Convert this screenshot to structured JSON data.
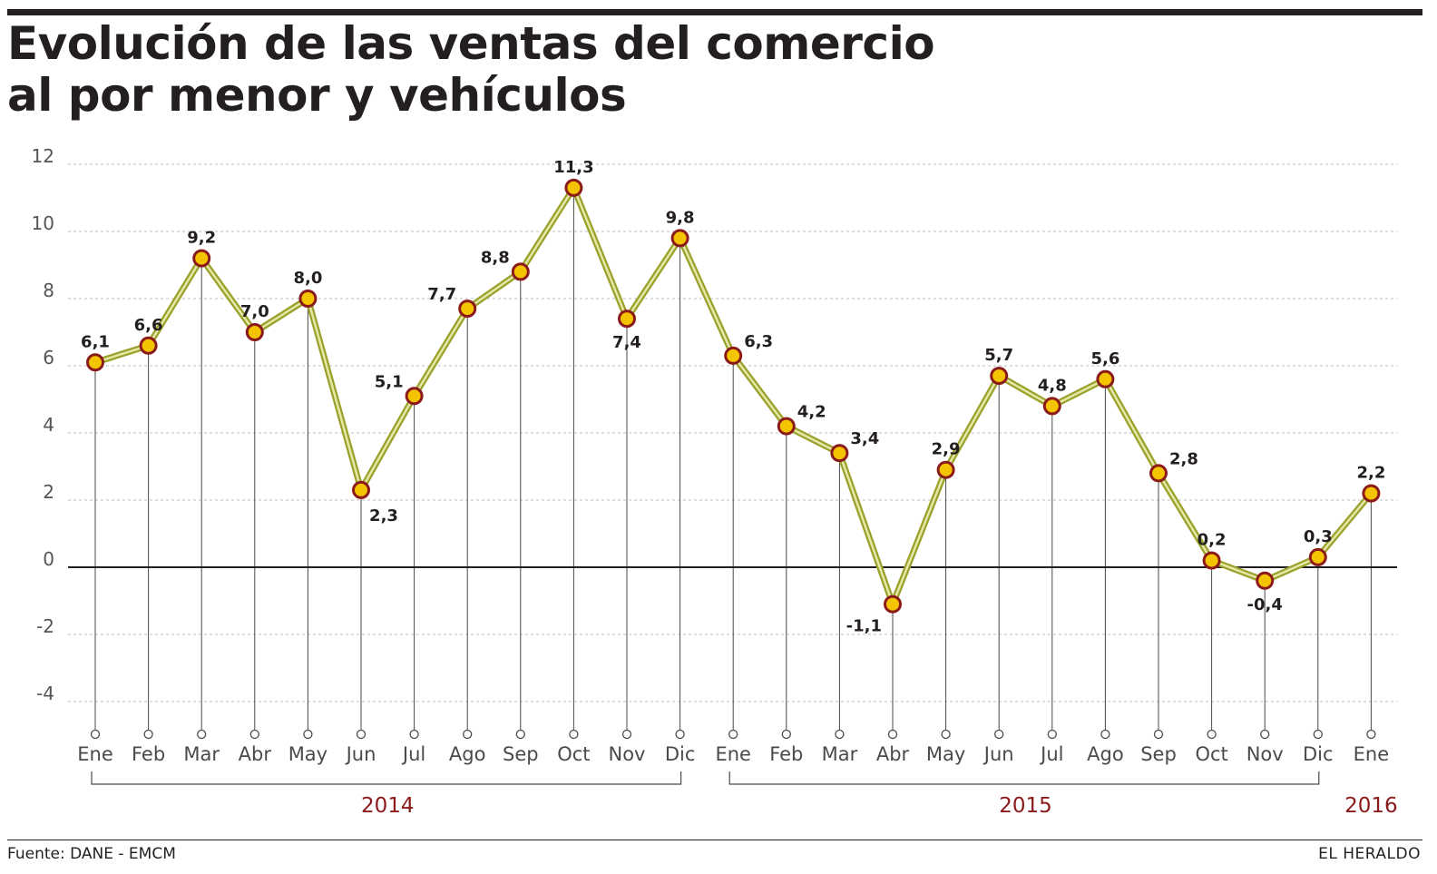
{
  "title_lines": [
    "Evolución de las ventas del comercio",
    "al por menor y vehículos"
  ],
  "footer": {
    "source": "Fuente: DANE - EMCM",
    "brand": "EL HERALDO"
  },
  "colors": {
    "line_outer": "#9aa12a",
    "line_inner": "#e4e7a6",
    "marker_fill": "#f5c400",
    "marker_stroke": "#8b1a1a",
    "year_label": "#8b1a1a",
    "text": "#231f20"
  },
  "chart_data": {
    "type": "line",
    "title": "Evolución de las ventas del comercio al por menor y vehículos",
    "categories": [
      "Ene",
      "Feb",
      "Mar",
      "Abr",
      "May",
      "Jun",
      "Jul",
      "Ago",
      "Sep",
      "Oct",
      "Nov",
      "Dic",
      "Ene",
      "Feb",
      "Mar",
      "Abr",
      "May",
      "Jun",
      "Jul",
      "Ago",
      "Sep",
      "Oct",
      "Nov",
      "Dic",
      "Ene"
    ],
    "values": [
      6.1,
      6.6,
      9.2,
      7.0,
      8.0,
      2.3,
      5.1,
      7.7,
      8.8,
      11.3,
      7.4,
      9.8,
      6.3,
      4.2,
      3.4,
      -1.1,
      2.9,
      5.7,
      4.8,
      5.6,
      2.8,
      0.2,
      -0.4,
      0.3,
      2.2
    ],
    "value_labels": [
      "6,1",
      "6,6",
      "9,2",
      "7,0",
      "8,0",
      "2,3",
      "5,1",
      "7,7",
      "8,8",
      "11,3",
      "7,4",
      "9,8",
      "6,3",
      "4,2",
      "3,4",
      "-1,1",
      "2,9",
      "5,7",
      "4,8",
      "5,6",
      "2,8",
      "0,2",
      "-0,4",
      "0,3",
      "2,2"
    ],
    "label_position": [
      "above",
      "above",
      "above",
      "above",
      "above",
      "below",
      "left",
      "left",
      "left",
      "above",
      "below",
      "above",
      "right",
      "right",
      "right",
      "left",
      "above",
      "above",
      "above",
      "above",
      "right",
      "above",
      "below",
      "above",
      "above"
    ],
    "yticks": [
      "12",
      "10",
      "8",
      "6",
      "4",
      "2",
      "0",
      "-2",
      "-4"
    ],
    "ytick_values": [
      12,
      10,
      8,
      6,
      4,
      2,
      0,
      -2,
      -4
    ],
    "ylim": [
      -4,
      12
    ],
    "grid": true,
    "year_groups": [
      {
        "label": "2014",
        "start": 0,
        "end": 11
      },
      {
        "label": "2015",
        "start": 12,
        "end": 23
      },
      {
        "label": "2016",
        "start": 24,
        "end": 24
      }
    ]
  }
}
